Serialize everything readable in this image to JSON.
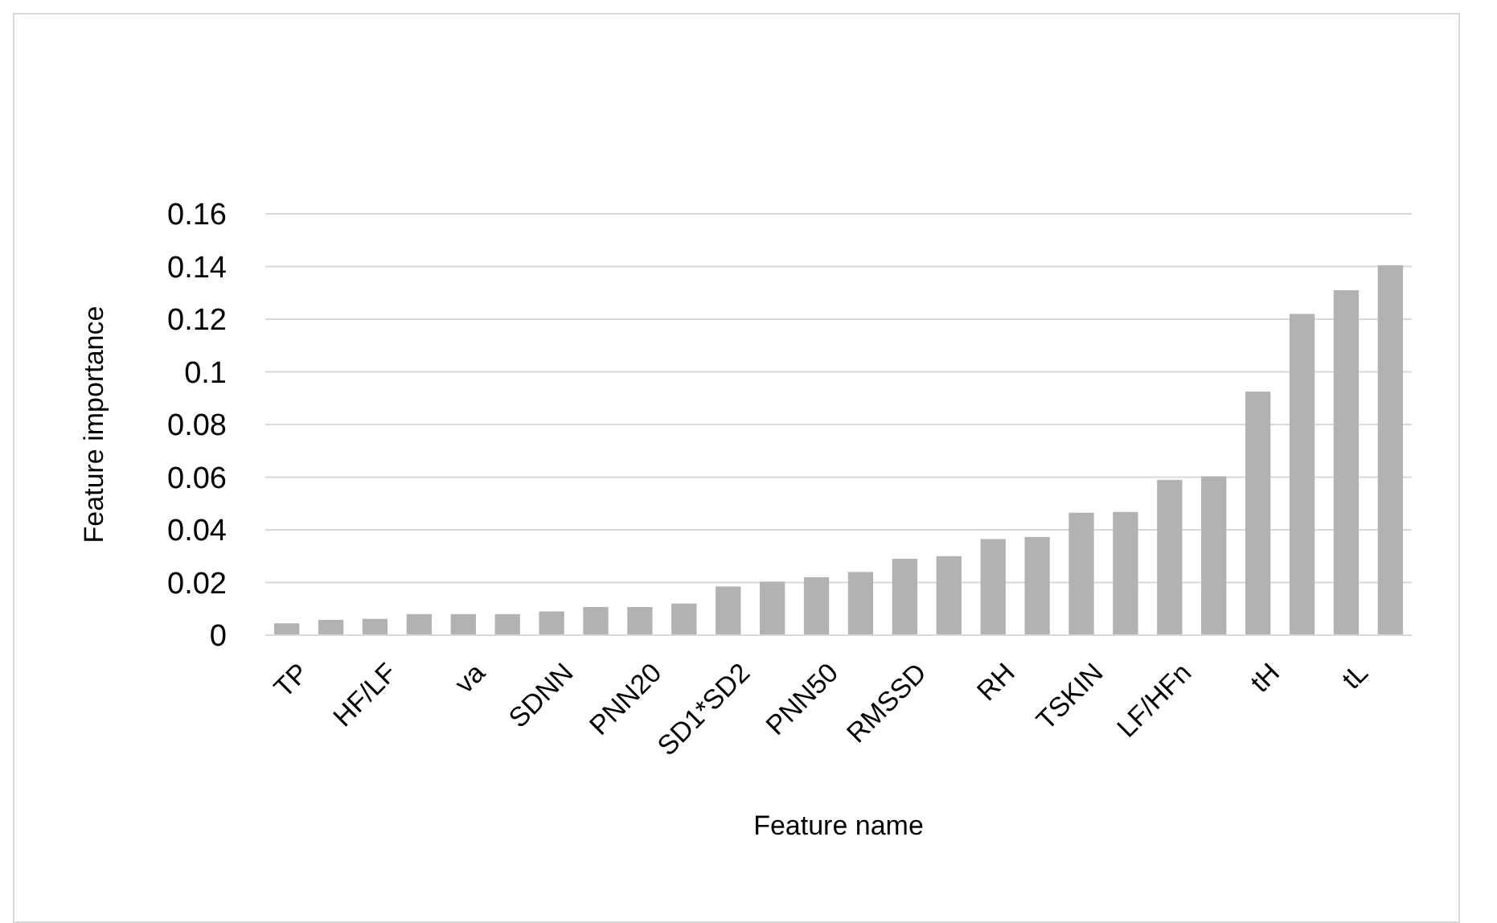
{
  "chart_data": {
    "type": "bar",
    "xlabel": "Feature name",
    "ylabel": "Feature importance",
    "categories": [
      "TP",
      null,
      "HF/LF",
      null,
      "va",
      null,
      "SDNN",
      null,
      "PNN20",
      null,
      "SD1*SD2",
      null,
      "PNN50",
      null,
      "RMSSD",
      null,
      "RH",
      null,
      "TSKIN",
      null,
      "LF/HFn",
      null,
      "tH",
      null,
      "tL",
      null
    ],
    "values": [
      0.0045,
      0.0058,
      0.0062,
      0.008,
      0.008,
      0.008,
      0.009,
      0.0107,
      0.0107,
      0.012,
      0.0185,
      0.0203,
      0.022,
      0.024,
      0.029,
      0.03,
      0.0365,
      0.0373,
      0.0465,
      0.0468,
      0.059,
      0.0603,
      0.0925,
      0.122,
      0.131,
      0.1405
    ],
    "color": "#b2b2b2",
    "ylim": [
      0,
      0.16
    ],
    "yticks": [
      0,
      0.02,
      0.04,
      0.06,
      0.08,
      0.1,
      0.12,
      0.14,
      0.16
    ],
    "grid": true
  }
}
